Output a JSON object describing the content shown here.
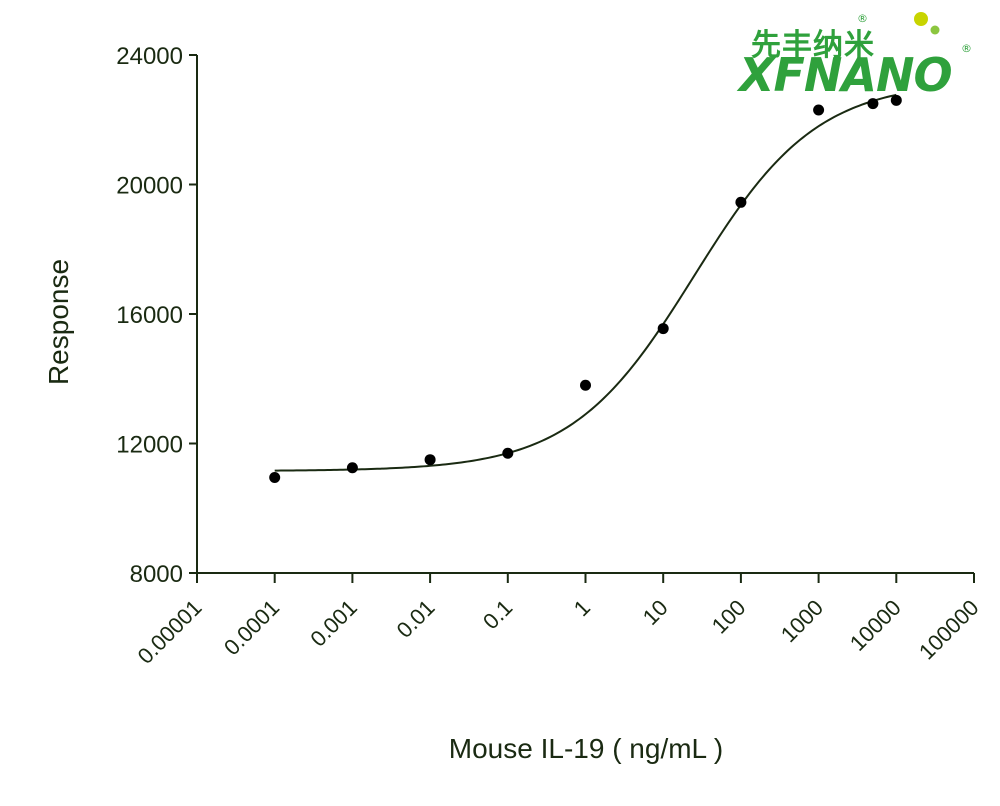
{
  "chart_data": {
    "type": "scatter",
    "xlabel": "Mouse IL-19 ( ng/mL )",
    "ylabel": "Response",
    "x_scale": "log",
    "xlim": [
      1e-05,
      100000
    ],
    "ylim": [
      8000,
      24000
    ],
    "x_tick_labels": [
      "0.00001",
      "0.0001",
      "0.001",
      "0.01",
      "0.1",
      "1",
      "10",
      "100",
      "1000",
      "10000",
      "100000"
    ],
    "y_ticks": [
      8000,
      12000,
      16000,
      20000,
      24000
    ],
    "y_tick_labels": [
      "8000",
      "12000",
      "16000",
      "20000",
      "24000"
    ],
    "series": [
      {
        "type": "scatter",
        "points": [
          {
            "x": 0.0001,
            "y": 10950
          },
          {
            "x": 0.001,
            "y": 11250
          },
          {
            "x": 0.01,
            "y": 11500
          },
          {
            "x": 0.1,
            "y": 11700
          },
          {
            "x": 1,
            "y": 13800
          },
          {
            "x": 10,
            "y": 15550
          },
          {
            "x": 100,
            "y": 19450
          },
          {
            "x": 1000,
            "y": 22300
          },
          {
            "x": 5000,
            "y": 22500
          },
          {
            "x": 10000,
            "y": 22600
          }
        ]
      },
      {
        "type": "line",
        "fit": "4PL",
        "params": {
          "bottom": 11150,
          "top": 23200,
          "ec50": 25,
          "hill": 0.55
        },
        "x_range": [
          0.0001,
          10000
        ]
      }
    ],
    "grid": false,
    "legend": "none"
  },
  "logo": {
    "chinese_text": "先丰纳米",
    "english_text": "XFNANO",
    "registered_mark": "®",
    "colors": {
      "brand_green": "#2fa13c",
      "ball_yellow": "#c8d400",
      "ball_light_green": "#8cc63f"
    }
  },
  "colors": {
    "axis": "#1a2a12",
    "curve": "#1a2a12",
    "points": "#000000"
  }
}
